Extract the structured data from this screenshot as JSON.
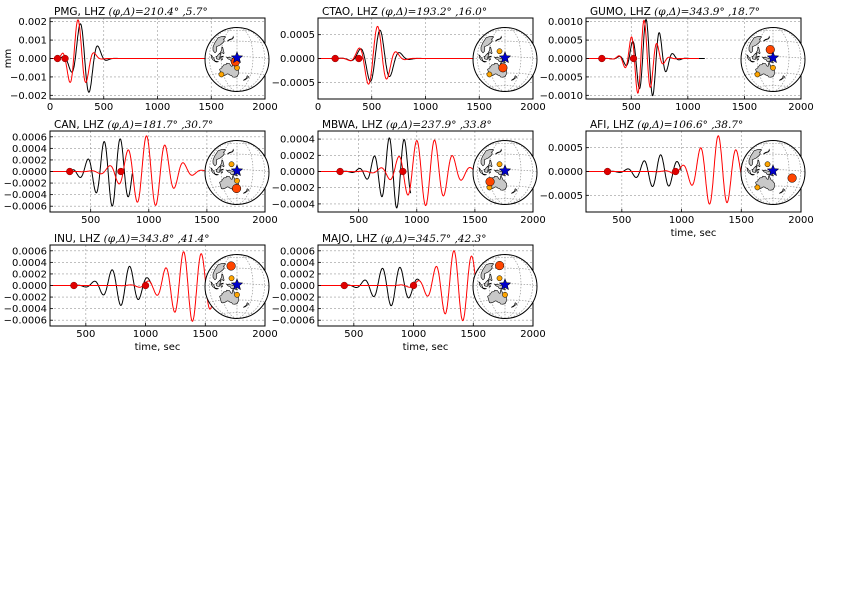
{
  "figure": {
    "y_unit": "mm",
    "xlabel": "time, sec",
    "trace_colors": {
      "data": "#000000",
      "synthetic": "#ff0000"
    },
    "map_colors": {
      "land": "#c8c8c8",
      "star": "#0000cc",
      "station_marker": "#ff4500",
      "other_station": "#ffa500"
    }
  },
  "chart_data": [
    {
      "type": "line",
      "station": "PMG",
      "channel": "LHZ",
      "phi": "210.4°",
      "delta": "5.7°",
      "ylabel": "mm",
      "xlim": [
        0,
        2000
      ],
      "ylim": [
        -0.0022,
        0.0022
      ],
      "xticks": [
        0,
        500,
        1000,
        1500,
        2000
      ],
      "xtick_labels": [
        "0",
        "500",
        "1000",
        "1500",
        "2000"
      ],
      "yticks": [
        -0.002,
        -0.001,
        0,
        0.001,
        0.002
      ],
      "ytick_labels": [
        "−0.002",
        "−0.001",
        "0.000",
        "0.001",
        "0.002"
      ],
      "data_end": 1030,
      "synth_end": 1650,
      "markers": [
        70,
        140
      ],
      "black": {
        "onset": 60,
        "peak": 320,
        "width": 120,
        "period": 175,
        "amp": 0.0021
      },
      "red": {
        "onset": 60,
        "peak": 260,
        "width": 110,
        "period": 160,
        "amp": 0.0021
      },
      "stations": [
        {
          "lat": -9,
          "lon": 147,
          "big": true
        }
      ],
      "extra": [
        [
          -20,
          150
        ],
        [
          -32,
          115
        ]
      ]
    },
    {
      "type": "line",
      "station": "CTAO",
      "channel": "LHZ",
      "phi": "193.2°",
      "delta": "16.0°",
      "ylabel": "",
      "xlim": [
        0,
        2000
      ],
      "ylim": [
        -0.00085,
        0.00085
      ],
      "xticks": [
        0,
        500,
        1000,
        1500,
        2000
      ],
      "xtick_labels": [
        "0",
        "500",
        "1000",
        "1500",
        "2000"
      ],
      "yticks": [
        -0.0005,
        0,
        0.0005
      ],
      "ytick_labels": [
        "−0.0005",
        "0.0000",
        "0.0005"
      ],
      "data_end": 1120,
      "synth_end": 1950,
      "markers": [
        160,
        380
      ],
      "black": {
        "onset": 150,
        "peak": 560,
        "width": 160,
        "period": 190,
        "amp": 0.0006
      },
      "red": {
        "onset": 150,
        "peak": 540,
        "width": 150,
        "period": 180,
        "amp": 0.00068
      },
      "stations": [
        {
          "lat": -20,
          "lon": 146,
          "big": true
        }
      ],
      "extra": [
        [
          10,
          140
        ],
        [
          -32,
          115
        ]
      ]
    },
    {
      "type": "line",
      "station": "GUMO",
      "channel": "LHZ",
      "phi": "343.9°",
      "delta": "18.7°",
      "ylabel": "",
      "xlim": [
        100,
        2000
      ],
      "ylim": [
        -0.0011,
        0.0011
      ],
      "xticks": [
        500,
        1000,
        1500,
        2000
      ],
      "xtick_labels": [
        "500",
        "1000",
        "1500",
        "2000"
      ],
      "yticks": [
        -0.001,
        -0.0005,
        0,
        0.0005,
        0.001
      ],
      "ytick_labels": [
        "−0.0010",
        "−0.0005",
        "0.0000",
        "0.0005",
        "0.0010"
      ],
      "data_end": 1150,
      "synth_end": 1100,
      "markers": [
        240,
        520
      ],
      "black": {
        "onset": 240,
        "peak": 650,
        "width": 150,
        "period": 120,
        "amp": 0.00108
      },
      "red": {
        "onset": 240,
        "peak": 600,
        "width": 130,
        "period": 115,
        "amp": 0.00105
      },
      "stations": [
        {
          "lat": 13,
          "lon": 145,
          "big": true
        }
      ],
      "extra": [
        [
          -20,
          150
        ],
        [
          -32,
          115
        ]
      ]
    },
    {
      "type": "line",
      "station": "CAN",
      "channel": "LHZ",
      "phi": "181.7°",
      "delta": "30.7°",
      "ylabel": "",
      "xlim": [
        150,
        2000
      ],
      "ylim": [
        -0.0007,
        0.0007
      ],
      "xticks": [
        500,
        1000,
        1500,
        2000
      ],
      "xtick_labels": [
        "500",
        "1000",
        "1500",
        "2000"
      ],
      "yticks": [
        -0.0006,
        -0.0004,
        -0.0002,
        0,
        0.0002,
        0.0004,
        0.0006
      ],
      "ytick_labels": [
        "−0.0006",
        "−0.0004",
        "−0.0002",
        "0.0000",
        "0.0002",
        "0.0004",
        "0.0006"
      ],
      "data_end": 860,
      "synth_end": 1950,
      "markers": [
        320,
        760
      ],
      "black": {
        "onset": 300,
        "peak": 700,
        "width": 220,
        "period": 140,
        "amp": 0.0006
      },
      "red": {
        "onset": 300,
        "peak": 1000,
        "width": 250,
        "period": 160,
        "amp": 0.00062
      },
      "stations": [
        {
          "lat": -35,
          "lon": 149,
          "big": true
        }
      ],
      "extra": [
        [
          10,
          140
        ],
        [
          -20,
          150
        ]
      ]
    },
    {
      "type": "line",
      "station": "MBWA",
      "channel": "LHZ",
      "phi": "237.9°",
      "delta": "33.8°",
      "ylabel": "",
      "xlim": [
        150,
        2000
      ],
      "ylim": [
        -0.0005,
        0.0005
      ],
      "xticks": [
        500,
        1000,
        1500,
        2000
      ],
      "xtick_labels": [
        "500",
        "1000",
        "1500",
        "2000"
      ],
      "yticks": [
        -0.0004,
        -0.0002,
        0,
        0.0002,
        0.0004
      ],
      "ytick_labels": [
        "−0.0004",
        "−0.0002",
        "0.0000",
        "0.0002",
        "0.0004"
      ],
      "data_end": 950,
      "synth_end": 1950,
      "markers": [
        340,
        880
      ],
      "black": {
        "onset": 340,
        "peak": 820,
        "width": 200,
        "period": 130,
        "amp": 0.00045
      },
      "red": {
        "onset": 340,
        "peak": 1080,
        "width": 260,
        "period": 155,
        "amp": 0.00042
      },
      "stations": [
        {
          "lat": -21,
          "lon": 120,
          "big": true
        }
      ],
      "extra": [
        [
          10,
          140
        ],
        [
          -32,
          115
        ]
      ]
    },
    {
      "type": "line",
      "station": "AFI",
      "channel": "LHZ",
      "phi": "106.6°",
      "delta": "38.7°",
      "ylabel": "",
      "xlim": [
        200,
        2000
      ],
      "ylim": [
        -0.00085,
        0.00085
      ],
      "xticks": [
        500,
        1000,
        1500,
        2000
      ],
      "xtick_labels": [
        "500",
        "1000",
        "1500",
        "2000"
      ],
      "yticks": [
        -0.0005,
        0,
        0.0005
      ],
      "ytick_labels": [
        "−0.0005",
        "0.0000",
        "0.0005"
      ],
      "data_end": 1000,
      "synth_end": 1950,
      "markers": [
        380,
        950
      ],
      "black": {
        "onset": 370,
        "peak": 820,
        "width": 200,
        "period": 140,
        "amp": 0.00035
      },
      "red": {
        "onset": 370,
        "peak": 1300,
        "width": 220,
        "period": 150,
        "amp": 0.00075
      },
      "stations": [
        {
          "lat": -14,
          "lon": 188,
          "big": true
        }
      ],
      "extra": [
        [
          10,
          140
        ],
        [
          -32,
          115
        ]
      ]
    },
    {
      "type": "line",
      "station": "INU",
      "channel": "LHZ",
      "phi": "343.8°",
      "delta": "41.4°",
      "ylabel": "",
      "xlim": [
        200,
        2000
      ],
      "ylim": [
        -0.0007,
        0.0007
      ],
      "xticks": [
        500,
        1000,
        1500,
        2000
      ],
      "xtick_labels": [
        "500",
        "1000",
        "1500",
        "2000"
      ],
      "yticks": [
        -0.0006,
        -0.0004,
        -0.0002,
        0,
        0.0002,
        0.0004,
        0.0006
      ],
      "ytick_labels": [
        "−0.0006",
        "−0.0004",
        "−0.0002",
        "0.0000",
        "0.0002",
        "0.0004",
        "0.0006"
      ],
      "data_end": 1050,
      "synth_end": 1950,
      "markers": [
        400,
        1000
      ],
      "black": {
        "onset": 380,
        "peak": 820,
        "width": 200,
        "period": 150,
        "amp": 0.00035
      },
      "red": {
        "onset": 380,
        "peak": 1380,
        "width": 250,
        "period": 150,
        "amp": 0.00062
      },
      "stations": [
        {
          "lat": 35,
          "lon": 137,
          "big": true
        }
      ],
      "extra": [
        [
          10,
          140
        ],
        [
          -20,
          150
        ]
      ]
    },
    {
      "type": "line",
      "station": "MAJO",
      "channel": "LHZ",
      "phi": "345.7°",
      "delta": "42.3°",
      "ylabel": "",
      "xlim": [
        200,
        2000
      ],
      "ylim": [
        -0.0007,
        0.0007
      ],
      "xticks": [
        500,
        1000,
        1500,
        2000
      ],
      "xtick_labels": [
        "500",
        "1000",
        "1500",
        "2000"
      ],
      "yticks": [
        -0.0006,
        -0.0004,
        -0.0002,
        0,
        0.0002,
        0.0004,
        0.0006
      ],
      "ytick_labels": [
        "−0.0006",
        "−0.0004",
        "−0.0002",
        "0.0000",
        "0.0002",
        "0.0004",
        "0.0006"
      ],
      "data_end": 1050,
      "synth_end": 1950,
      "markers": [
        420,
        1000
      ],
      "black": {
        "onset": 400,
        "peak": 820,
        "width": 200,
        "period": 150,
        "amp": 0.00035
      },
      "red": {
        "onset": 400,
        "peak": 1380,
        "width": 240,
        "period": 150,
        "amp": 0.00062
      },
      "stations": [
        {
          "lat": 36,
          "lon": 138,
          "big": true
        }
      ],
      "extra": [
        [
          10,
          140
        ],
        [
          -20,
          150
        ]
      ]
    }
  ]
}
